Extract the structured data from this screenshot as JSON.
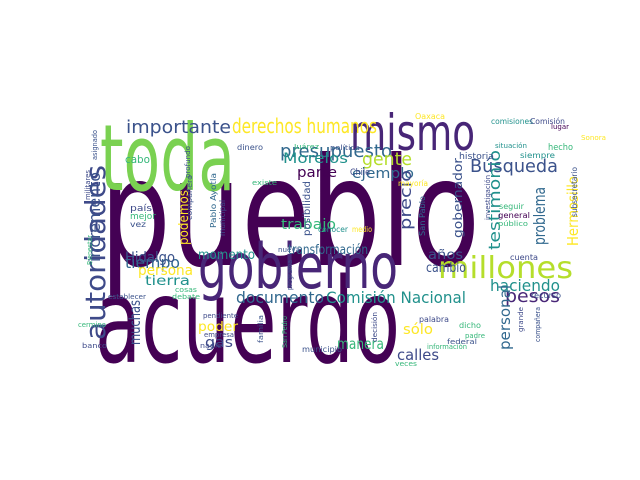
{
  "palette": {
    "dark_purple": "#440154",
    "indigo": "#3b528b",
    "blue": "#31688e",
    "teal": "#21918c",
    "green_teal": "#35b779",
    "lime": "#90d743",
    "yellow": "#fde725",
    "grey_blue": "#3e4a89",
    "sea": "#1f9e89"
  },
  "words": [
    {
      "text": "pueblo",
      "color": "#440154"
    },
    {
      "text": "acuerdo",
      "color": "#440154"
    },
    {
      "text": "toda",
      "color": "#7ad151"
    },
    {
      "text": "gobierno",
      "color": "#482677"
    },
    {
      "text": "mismo",
      "color": "#482677"
    },
    {
      "text": "millones",
      "color": "#b5de2b"
    },
    {
      "text": "autoridades",
      "color": "#3e4a89"
    },
    {
      "text": "derechos humanos",
      "color": "#fde725"
    },
    {
      "text": "importante",
      "color": "#3b528b"
    },
    {
      "text": "presupuesto",
      "color": "#31688e"
    },
    {
      "text": "documento",
      "color": "#31688e"
    },
    {
      "text": "Comisión Nacional",
      "color": "#21918c"
    },
    {
      "text": "gente",
      "color": "#b5de2b"
    },
    {
      "text": "Búsqueda",
      "color": "#3b528b"
    },
    {
      "text": "Morelos",
      "color": "#21918c"
    },
    {
      "text": "ejemplo",
      "color": "#31688e"
    },
    {
      "text": "parte",
      "color": "#440154"
    },
    {
      "text": "tiempo",
      "color": "#31688e"
    },
    {
      "text": "persona",
      "color": "#fde725"
    },
    {
      "text": "Hidalgo",
      "color": "#3b528b"
    },
    {
      "text": "momento",
      "color": "#21918c"
    },
    {
      "text": "trabajo",
      "color": "#35b779"
    },
    {
      "text": "transformación",
      "color": "#31688e"
    },
    {
      "text": "años",
      "color": "#3b528b"
    },
    {
      "text": "pesos",
      "color": "#482677"
    },
    {
      "text": "haciendo",
      "color": "#21918c"
    },
    {
      "text": "cambio",
      "color": "#3b528b"
    },
    {
      "text": "precio",
      "color": "#3e4a89"
    },
    {
      "text": "testimonio",
      "color": "#21918c"
    },
    {
      "text": "problema",
      "color": "#31688e"
    },
    {
      "text": "Hermosillo",
      "color": "#fde725"
    },
    {
      "text": "gobernador",
      "color": "#3b528b"
    },
    {
      "text": "incremento",
      "color": "#3b528b"
    },
    {
      "text": "podemos",
      "color": "#fde725"
    },
    {
      "text": "tierra",
      "color": "#21918c"
    },
    {
      "text": "muchas",
      "color": "#3b528b"
    },
    {
      "text": "poder",
      "color": "#fde725"
    },
    {
      "text": "gas",
      "color": "#3e4a89"
    },
    {
      "text": "manera",
      "color": "#35b779"
    },
    {
      "text": "sólo",
      "color": "#fde725"
    },
    {
      "text": "calles",
      "color": "#3e4a89"
    },
    {
      "text": "personal",
      "color": "#31688e"
    },
    {
      "text": "cabo",
      "color": "#35b779"
    },
    {
      "text": "país",
      "color": "#3e4a89"
    },
    {
      "text": "mejor",
      "color": "#35b779"
    },
    {
      "text": "vez",
      "color": "#3b528b"
    },
    {
      "text": "compañero",
      "color": "#3b528b"
    },
    {
      "text": "Pablo Ayotla",
      "color": "#31688e"
    },
    {
      "text": "municipal",
      "color": "#3e4a89"
    },
    {
      "text": "existe",
      "color": "#35b779"
    },
    {
      "text": "posibilidad",
      "color": "#3b528b"
    },
    {
      "text": "conocer",
      "color": "#21918c"
    },
    {
      "text": "medio",
      "color": "#fde725"
    },
    {
      "text": "Chile",
      "color": "#3e4a89"
    },
    {
      "text": "historia",
      "color": "#3b528b"
    },
    {
      "text": "comisiones",
      "color": "#21918c"
    },
    {
      "text": "Comisión",
      "color": "#3e4a89"
    },
    {
      "text": "lugar",
      "color": "#440154"
    },
    {
      "text": "hecho",
      "color": "#35b779"
    },
    {
      "text": "siempre",
      "color": "#21918c"
    },
    {
      "text": "dinero",
      "color": "#3b528b"
    },
    {
      "text": "Juárez",
      "color": "#35b779"
    },
    {
      "text": "política",
      "color": "#3b528b"
    },
    {
      "text": "Oaxaca",
      "color": "#fde725"
    },
    {
      "text": "seguir",
      "color": "#35b779"
    },
    {
      "text": "general",
      "color": "#440154"
    },
    {
      "text": "público",
      "color": "#35b779"
    },
    {
      "text": "San Pablo",
      "color": "#31688e"
    },
    {
      "text": "situación",
      "color": "#21918c"
    },
    {
      "text": "cuenta",
      "color": "#3e4a89"
    },
    {
      "text": "recurso",
      "color": "#3b528b"
    },
    {
      "text": "palabra",
      "color": "#3e4a89"
    },
    {
      "text": "decisión",
      "color": "#3e4a89"
    },
    {
      "text": "dicho",
      "color": "#35b779"
    },
    {
      "text": "padre",
      "color": "#35b779"
    },
    {
      "text": "información",
      "color": "#35b779"
    },
    {
      "text": "federal",
      "color": "#3b528b"
    },
    {
      "text": "grande",
      "color": "#3e4a89"
    },
    {
      "text": "compañera",
      "color": "#3b528b"
    },
    {
      "text": "banco",
      "color": "#3e4a89"
    },
    {
      "text": "pendiente",
      "color": "#3e4a89"
    },
    {
      "text": "empresa",
      "color": "#3e4a89"
    },
    {
      "text": "municipio",
      "color": "#3b528b"
    },
    {
      "text": "cosas",
      "color": "#35b779"
    },
    {
      "text": "debate",
      "color": "#35b779"
    },
    {
      "text": "establecer",
      "color": "#3b528b"
    },
    {
      "text": "nadie",
      "color": "#3e4a89"
    },
    {
      "text": "nueva",
      "color": "#3b528b"
    },
    {
      "text": "programa",
      "color": "#3e4a89"
    },
    {
      "text": "Sonora",
      "color": "#fde725"
    },
    {
      "text": "subsecretario",
      "color": "#3b528b"
    },
    {
      "text": "mayoría",
      "color": "#fde725"
    },
    {
      "text": "investigación",
      "color": "#3e4a89"
    },
    {
      "text": "asignado",
      "color": "#3b528b"
    },
    {
      "text": "profundo",
      "color": "#3b528b"
    },
    {
      "text": "militares",
      "color": "#3e4a89"
    },
    {
      "text": "Bienestar",
      "color": "#35b779"
    },
    {
      "text": "San Pedro",
      "color": "#35b779"
    },
    {
      "text": "familia",
      "color": "#3b528b"
    },
    {
      "text": "cermino",
      "color": "#35b779"
    },
    {
      "text": "veces",
      "color": "#35b779"
    }
  ]
}
